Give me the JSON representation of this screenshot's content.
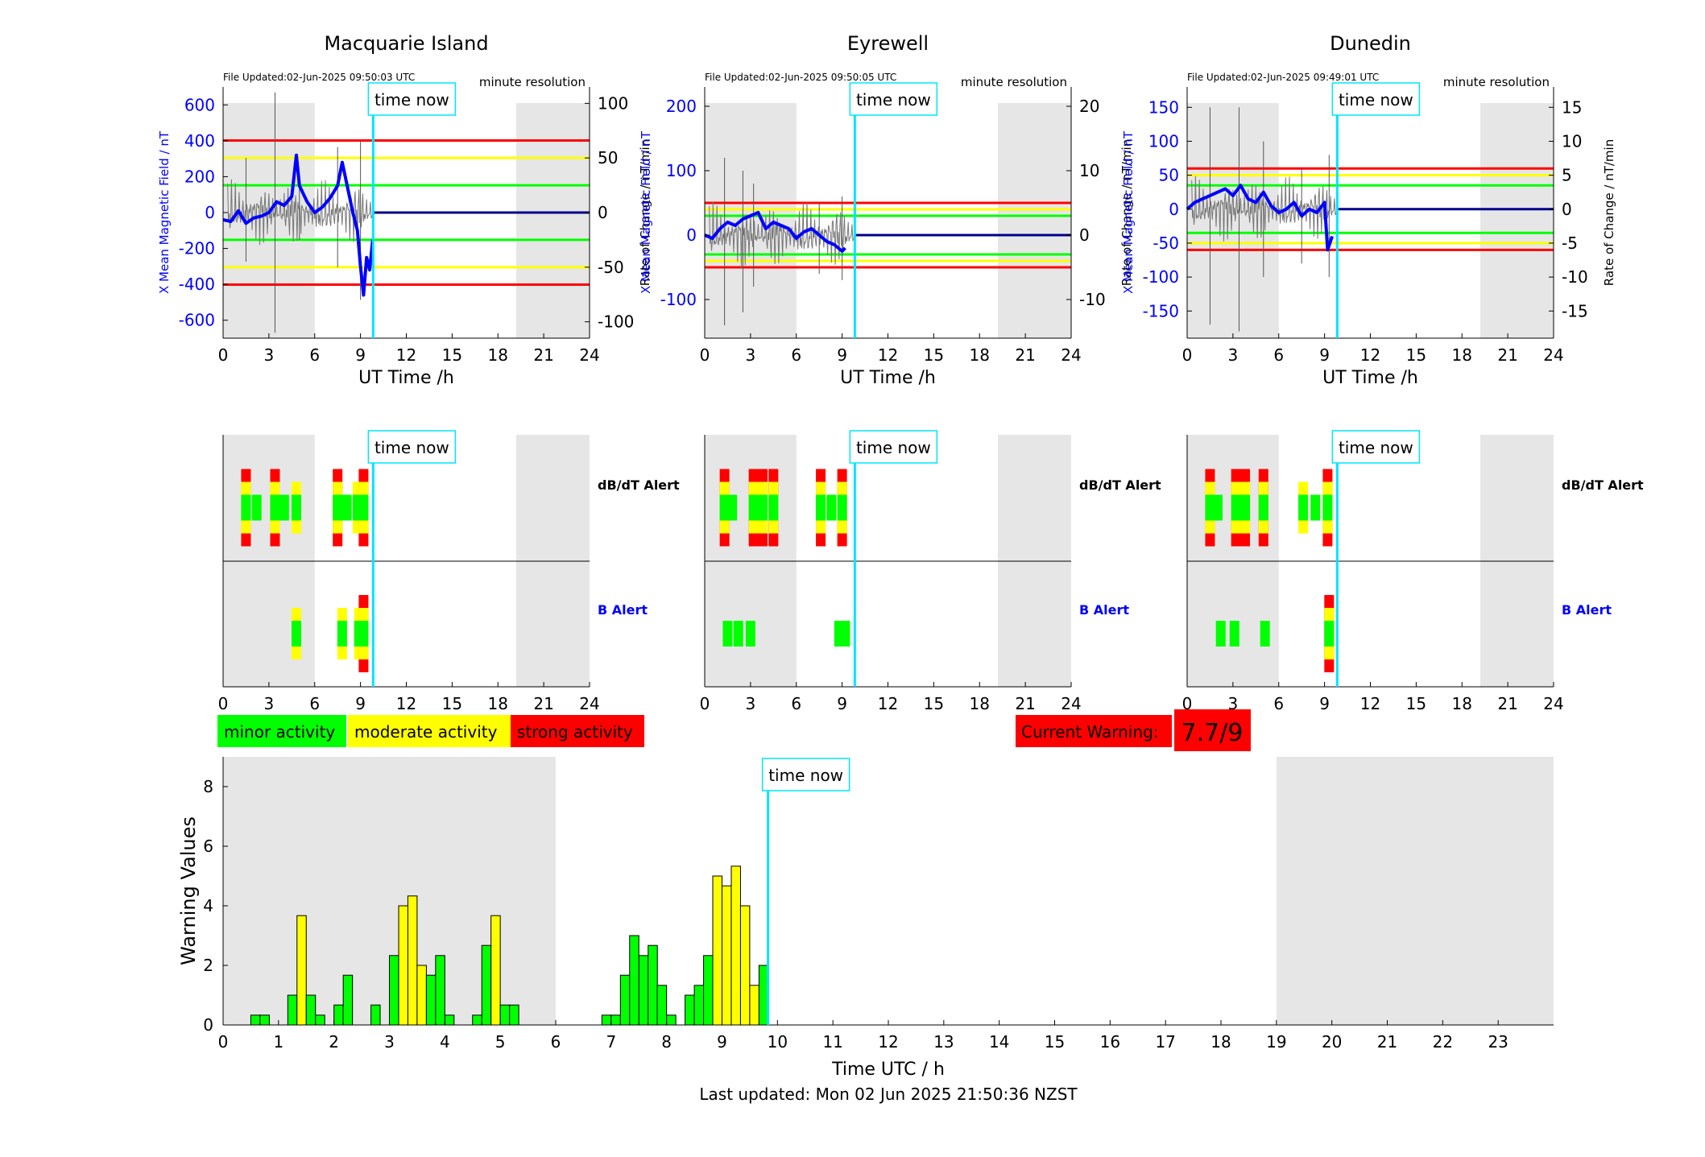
{
  "stations": [
    {
      "name": "Macquarie Island",
      "file_updated": "File Updated:02-Jun-2025 09:50:03 UTC",
      "resolution": "minute resolution",
      "y_left": {
        "label": "X Mean Magnetic Field / nT",
        "range": [
          -700,
          700
        ],
        "ticks": [
          -600,
          -400,
          -200,
          0,
          200,
          400,
          600
        ]
      },
      "y_right": {
        "label": "Rate of Change / nT/min",
        "range": [
          -115,
          115
        ],
        "ticks": [
          -100,
          -50,
          0,
          50,
          100
        ]
      },
      "thresholds_right": {
        "green": 25,
        "yellow": 50,
        "red": 66
      },
      "x_field_trace": [
        [
          0,
          -40
        ],
        [
          0.5,
          -50
        ],
        [
          1,
          10
        ],
        [
          1.5,
          -60
        ],
        [
          2,
          -30
        ],
        [
          2.5,
          -20
        ],
        [
          3,
          0
        ],
        [
          3.5,
          60
        ],
        [
          4,
          40
        ],
        [
          4.5,
          90
        ],
        [
          4.8,
          320
        ],
        [
          5,
          150
        ],
        [
          5.5,
          60
        ],
        [
          6,
          0
        ],
        [
          6.5,
          30
        ],
        [
          7,
          80
        ],
        [
          7.5,
          150
        ],
        [
          7.8,
          280
        ],
        [
          8,
          200
        ],
        [
          8.5,
          0
        ],
        [
          8.8,
          -100
        ],
        [
          9,
          -300
        ],
        [
          9.2,
          -460
        ],
        [
          9.4,
          -250
        ],
        [
          9.6,
          -320
        ],
        [
          9.8,
          -150
        ]
      ],
      "rate_spikes": [
        [
          1.5,
          -45
        ],
        [
          1.5,
          50
        ],
        [
          3.4,
          -110
        ],
        [
          3.4,
          110
        ],
        [
          5,
          -25
        ],
        [
          5,
          30
        ],
        [
          7.5,
          -50
        ],
        [
          7.5,
          60
        ],
        [
          9,
          -80
        ],
        [
          9,
          65
        ]
      ],
      "dbdt_alert": [
        [
          1.5,
          3
        ],
        [
          2.2,
          1
        ],
        [
          3.4,
          3
        ],
        [
          4,
          1
        ],
        [
          4.8,
          2
        ],
        [
          7.5,
          3
        ],
        [
          8.1,
          1
        ],
        [
          8.8,
          2
        ],
        [
          9.2,
          3
        ]
      ],
      "b_alert": [
        [
          4.8,
          2
        ],
        [
          7.8,
          2
        ],
        [
          8.9,
          2
        ],
        [
          9.2,
          3
        ]
      ]
    },
    {
      "name": "Eyrewell",
      "file_updated": "File Updated:02-Jun-2025 09:50:05 UTC",
      "resolution": "minute resolution",
      "y_left": {
        "label": "X Mean Magnetic Field / nT",
        "range": [
          -160,
          230
        ],
        "ticks": [
          -100,
          0,
          100,
          200
        ]
      },
      "y_right": {
        "label": "Rate of Change / nT/min",
        "range": [
          -16,
          23
        ],
        "ticks": [
          -10,
          0,
          10,
          20
        ]
      },
      "thresholds_right": {
        "green": 3,
        "yellow": 4,
        "red": 5
      },
      "x_field_trace": [
        [
          0,
          0
        ],
        [
          0.5,
          -5
        ],
        [
          1,
          10
        ],
        [
          1.5,
          20
        ],
        [
          2,
          15
        ],
        [
          2.5,
          25
        ],
        [
          3,
          30
        ],
        [
          3.5,
          35
        ],
        [
          4,
          10
        ],
        [
          4.5,
          20
        ],
        [
          5,
          15
        ],
        [
          5.5,
          10
        ],
        [
          6,
          -5
        ],
        [
          6.5,
          5
        ],
        [
          7,
          10
        ],
        [
          7.5,
          0
        ],
        [
          8,
          -10
        ],
        [
          8.5,
          -15
        ],
        [
          9,
          -25
        ],
        [
          9.2,
          -20
        ]
      ],
      "rate_spikes": [
        [
          1.3,
          -14
        ],
        [
          1.3,
          12
        ],
        [
          2.5,
          -12
        ],
        [
          2.5,
          10
        ],
        [
          3.2,
          -8
        ],
        [
          3.2,
          8
        ],
        [
          7.5,
          -6
        ],
        [
          7.5,
          5
        ],
        [
          9,
          -7
        ],
        [
          9,
          6
        ]
      ],
      "dbdt_alert": [
        [
          1.3,
          3
        ],
        [
          1.8,
          1
        ],
        [
          3.2,
          3
        ],
        [
          3.8,
          3
        ],
        [
          4.5,
          3
        ],
        [
          7.6,
          3
        ],
        [
          8.3,
          1
        ],
        [
          9,
          3
        ]
      ],
      "b_alert": [
        [
          1.5,
          1
        ],
        [
          2.2,
          1
        ],
        [
          3,
          1
        ],
        [
          8.8,
          1
        ],
        [
          9.2,
          1
        ]
      ]
    },
    {
      "name": "Dunedin",
      "file_updated": "File Updated:02-Jun-2025 09:49:01 UTC",
      "resolution": "minute resolution",
      "y_left": {
        "label": "X Mean Magnetic Field / nT",
        "range": [
          -190,
          180
        ],
        "ticks": [
          -150,
          -100,
          -50,
          0,
          50,
          100,
          150
        ]
      },
      "y_right": {
        "label": "Rate of Change / nT/min",
        "range": [
          -19,
          18
        ],
        "ticks": [
          -15,
          -10,
          -5,
          0,
          5,
          10,
          15
        ]
      },
      "thresholds_right": {
        "green": 3.5,
        "yellow": 5,
        "red": 6
      },
      "x_field_trace": [
        [
          0,
          0
        ],
        [
          0.5,
          10
        ],
        [
          1,
          15
        ],
        [
          1.5,
          20
        ],
        [
          2,
          25
        ],
        [
          2.5,
          30
        ],
        [
          3,
          20
        ],
        [
          3.5,
          35
        ],
        [
          4,
          15
        ],
        [
          4.5,
          10
        ],
        [
          5,
          25
        ],
        [
          5.5,
          5
        ],
        [
          6,
          -5
        ],
        [
          6.5,
          0
        ],
        [
          7,
          10
        ],
        [
          7.5,
          -10
        ],
        [
          8,
          0
        ],
        [
          8.5,
          -5
        ],
        [
          9,
          10
        ],
        [
          9.2,
          -60
        ],
        [
          9.5,
          -40
        ]
      ],
      "rate_spikes": [
        [
          1.5,
          -17
        ],
        [
          1.5,
          15
        ],
        [
          3.4,
          -18
        ],
        [
          3.4,
          15
        ],
        [
          5,
          -10
        ],
        [
          5,
          10
        ],
        [
          7.5,
          -8
        ],
        [
          7.5,
          6
        ],
        [
          9.3,
          -10
        ],
        [
          9.3,
          8
        ]
      ],
      "dbdt_alert": [
        [
          1.5,
          3
        ],
        [
          2,
          1
        ],
        [
          3.2,
          3
        ],
        [
          3.8,
          3
        ],
        [
          5,
          3
        ],
        [
          7.6,
          2
        ],
        [
          8.4,
          1
        ],
        [
          9.2,
          3
        ]
      ],
      "b_alert": [
        [
          2.2,
          1
        ],
        [
          3.1,
          1
        ],
        [
          5.1,
          1
        ],
        [
          9.3,
          3
        ]
      ]
    }
  ],
  "common": {
    "x_label": "UT Time /h",
    "x_ticks": [
      0,
      3,
      6,
      9,
      12,
      15,
      18,
      21,
      24
    ],
    "time_now_label": "time now",
    "time_now_hour": 9.83,
    "night_shading": [
      [
        0,
        6
      ],
      [
        19.2,
        24
      ]
    ],
    "dbdt_label": "dB/dT Alert",
    "b_label": "B Alert"
  },
  "legend": {
    "minor": "minor activity",
    "moderate": "moderate activity",
    "strong": "strong activity"
  },
  "colors": {
    "minor": "#00ff00",
    "moderate": "#ffff00",
    "strong": "#ff0000",
    "time_now": "#00e5ff",
    "field_trace": "#0000ff",
    "shade": "#e6e6e6"
  },
  "current_warning": {
    "label": "Current Warning:",
    "value": "7.7/9"
  },
  "chart_data": {
    "type": "bar",
    "title": "",
    "xlabel": "Time UTC / h",
    "ylabel": "Warning Values",
    "xlim": [
      0,
      24
    ],
    "ylim": [
      0,
      9
    ],
    "x_ticks": [
      0,
      1,
      2,
      3,
      4,
      5,
      6,
      7,
      8,
      9,
      10,
      11,
      12,
      13,
      14,
      15,
      16,
      17,
      18,
      19,
      20,
      21,
      22,
      23
    ],
    "y_ticks": [
      0,
      2,
      4,
      6,
      8
    ],
    "shading": [
      [
        0,
        6
      ],
      [
        19,
        24
      ]
    ],
    "time_now": 9.83,
    "bars": [
      {
        "x": 0.5,
        "value": 0.33,
        "level": "minor"
      },
      {
        "x": 0.667,
        "value": 0.33,
        "level": "minor"
      },
      {
        "x": 1.167,
        "value": 1.0,
        "level": "minor"
      },
      {
        "x": 1.333,
        "value": 3.67,
        "level": "moderate"
      },
      {
        "x": 1.5,
        "value": 1.0,
        "level": "minor"
      },
      {
        "x": 1.667,
        "value": 0.33,
        "level": "minor"
      },
      {
        "x": 2.0,
        "value": 0.67,
        "level": "minor"
      },
      {
        "x": 2.167,
        "value": 1.67,
        "level": "minor"
      },
      {
        "x": 2.667,
        "value": 0.67,
        "level": "minor"
      },
      {
        "x": 3.0,
        "value": 2.33,
        "level": "minor"
      },
      {
        "x": 3.167,
        "value": 4.0,
        "level": "moderate"
      },
      {
        "x": 3.333,
        "value": 4.33,
        "level": "moderate"
      },
      {
        "x": 3.5,
        "value": 2.0,
        "level": "moderate"
      },
      {
        "x": 3.667,
        "value": 1.67,
        "level": "minor"
      },
      {
        "x": 3.833,
        "value": 2.33,
        "level": "minor"
      },
      {
        "x": 4.0,
        "value": 0.33,
        "level": "minor"
      },
      {
        "x": 4.5,
        "value": 0.33,
        "level": "minor"
      },
      {
        "x": 4.667,
        "value": 2.67,
        "level": "minor"
      },
      {
        "x": 4.833,
        "value": 3.67,
        "level": "moderate"
      },
      {
        "x": 5.0,
        "value": 0.67,
        "level": "minor"
      },
      {
        "x": 5.167,
        "value": 0.67,
        "level": "minor"
      },
      {
        "x": 6.833,
        "value": 0.33,
        "level": "minor"
      },
      {
        "x": 7.0,
        "value": 0.33,
        "level": "minor"
      },
      {
        "x": 7.167,
        "value": 1.67,
        "level": "minor"
      },
      {
        "x": 7.333,
        "value": 3.0,
        "level": "minor"
      },
      {
        "x": 7.5,
        "value": 2.33,
        "level": "minor"
      },
      {
        "x": 7.667,
        "value": 2.67,
        "level": "minor"
      },
      {
        "x": 7.833,
        "value": 1.33,
        "level": "minor"
      },
      {
        "x": 8.0,
        "value": 0.33,
        "level": "minor"
      },
      {
        "x": 8.333,
        "value": 1.0,
        "level": "minor"
      },
      {
        "x": 8.5,
        "value": 1.33,
        "level": "minor"
      },
      {
        "x": 8.667,
        "value": 2.33,
        "level": "minor"
      },
      {
        "x": 8.833,
        "value": 5.0,
        "level": "moderate"
      },
      {
        "x": 9.0,
        "value": 4.67,
        "level": "moderate"
      },
      {
        "x": 9.167,
        "value": 5.33,
        "level": "moderate"
      },
      {
        "x": 9.333,
        "value": 4.0,
        "level": "moderate"
      },
      {
        "x": 9.5,
        "value": 1.33,
        "level": "moderate"
      },
      {
        "x": 9.667,
        "value": 2.0,
        "level": "minor"
      }
    ]
  },
  "footer": {
    "last_updated": "Last updated: Mon 02 Jun 2025 21:50:36 NZST"
  }
}
